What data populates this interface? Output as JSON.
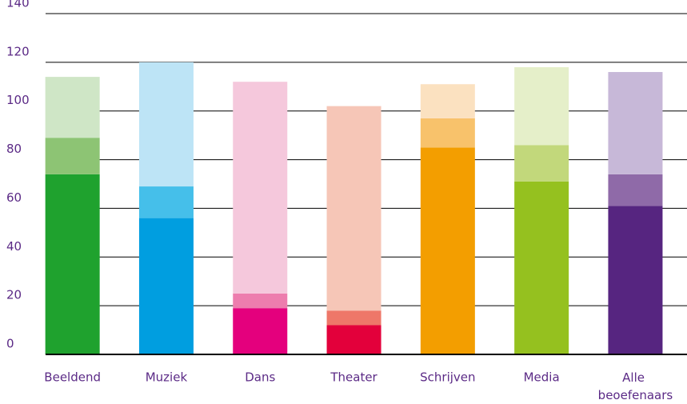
{
  "chart_data": {
    "type": "stacked-bar",
    "categories": [
      "Beeldend",
      "Muziek",
      "Dans",
      "Theater",
      "Schrijven",
      "Media",
      "Alle beoefenaars"
    ],
    "series": [
      {
        "values": [
          74,
          56,
          19,
          12,
          85,
          71,
          61
        ],
        "colors": [
          "#1fa22e",
          "#009ee0",
          "#e4007d",
          "#e3003b",
          "#f39e00",
          "#95c11f",
          "#562580"
        ]
      },
      {
        "values": [
          15,
          13,
          6,
          6,
          12,
          15,
          13
        ],
        "colors": [
          "#8dc474",
          "#45bfea",
          "#ed7dae",
          "#ee7769",
          "#f8c26b",
          "#c2d87b",
          "#8f6aa8"
        ]
      },
      {
        "values": [
          25,
          51,
          87,
          84,
          14,
          32,
          42
        ],
        "colors": [
          "#cfe6c6",
          "#bde4f6",
          "#f5c8dc",
          "#f6c6b7",
          "#fbe1c0",
          "#e5efc9",
          "#c7b8d8"
        ]
      }
    ],
    "ylim": [
      0,
      140
    ],
    "yticks": [
      0,
      20,
      40,
      60,
      80,
      100,
      120,
      140
    ],
    "grid": true
  }
}
